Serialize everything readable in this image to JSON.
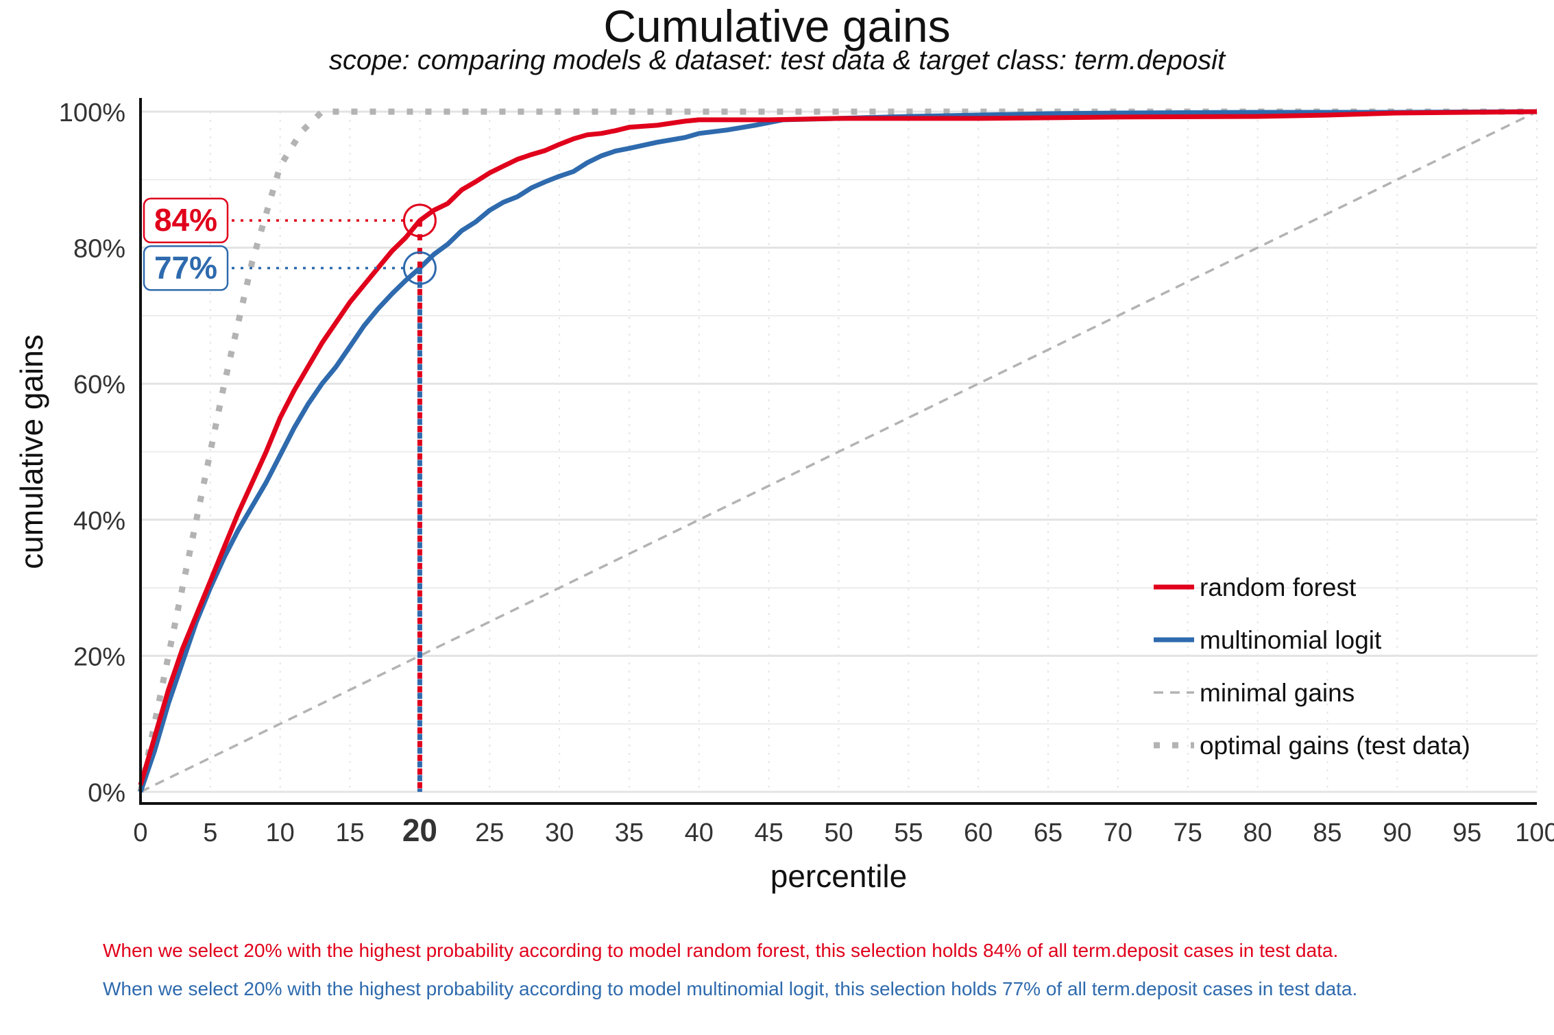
{
  "chart_data": {
    "type": "line",
    "title": "Cumulative gains",
    "subtitle": "scope: comparing models & dataset: test data & target class: term.deposit",
    "xlabel": "percentile",
    "ylabel": "cumulative gains",
    "xlim": [
      0,
      100
    ],
    "ylim": [
      0,
      1
    ],
    "x_ticks": [
      "0",
      "5",
      "10",
      "15",
      "20",
      "25",
      "30",
      "35",
      "40",
      "45",
      "50",
      "55",
      "60",
      "65",
      "70",
      "75",
      "80",
      "85",
      "90",
      "95",
      "100"
    ],
    "y_ticks": [
      "0%",
      "20%",
      "40%",
      "60%",
      "80%",
      "100%"
    ],
    "highlight_x": 20,
    "highlight_x_label": "20",
    "grid": true,
    "legend_position": "bottom-right",
    "colors": {
      "random_forest": "#e0001b",
      "multinomial_logit": "#2e6aad",
      "reference": "#b3b3b3",
      "axis": "#111111",
      "grid": "#e6e6e6"
    },
    "series": [
      {
        "name": "random forest",
        "color": "#e0001b",
        "x": [
          0,
          1,
          2,
          3,
          4,
          5,
          6,
          7,
          8,
          9,
          10,
          11,
          12,
          13,
          14,
          15,
          16,
          17,
          18,
          19,
          20,
          21,
          22,
          23,
          24,
          25,
          26,
          27,
          28,
          29,
          30,
          31,
          32,
          33,
          34,
          35,
          37,
          39,
          40,
          45,
          50,
          60,
          70,
          80,
          85,
          90,
          95,
          100
        ],
        "values": [
          0.01,
          0.08,
          0.15,
          0.21,
          0.26,
          0.31,
          0.36,
          0.41,
          0.455,
          0.5,
          0.55,
          0.59,
          0.625,
          0.66,
          0.69,
          0.72,
          0.745,
          0.77,
          0.795,
          0.815,
          0.84,
          0.855,
          0.865,
          0.885,
          0.897,
          0.91,
          0.92,
          0.93,
          0.937,
          0.943,
          0.952,
          0.96,
          0.966,
          0.968,
          0.972,
          0.977,
          0.98,
          0.986,
          0.988,
          0.988,
          0.99,
          0.99,
          0.992,
          0.993,
          0.995,
          0.998,
          0.999,
          1.0
        ]
      },
      {
        "name": "multinomial logit",
        "color": "#2e6aad",
        "x": [
          0,
          1,
          2,
          3,
          4,
          5,
          6,
          7,
          8,
          9,
          10,
          11,
          12,
          13,
          14,
          15,
          16,
          17,
          18,
          19,
          20,
          21,
          22,
          23,
          24,
          25,
          26,
          27,
          28,
          29,
          30,
          31,
          32,
          33,
          34,
          35,
          37,
          39,
          40,
          42,
          44,
          46,
          50,
          55,
          60,
          65,
          70,
          80,
          90,
          100
        ],
        "values": [
          0.0,
          0.06,
          0.13,
          0.19,
          0.25,
          0.3,
          0.345,
          0.385,
          0.42,
          0.455,
          0.495,
          0.535,
          0.57,
          0.6,
          0.625,
          0.655,
          0.685,
          0.71,
          0.732,
          0.752,
          0.77,
          0.79,
          0.805,
          0.825,
          0.838,
          0.855,
          0.867,
          0.875,
          0.888,
          0.897,
          0.905,
          0.912,
          0.925,
          0.935,
          0.942,
          0.946,
          0.955,
          0.962,
          0.968,
          0.973,
          0.98,
          0.988,
          0.99,
          0.993,
          0.995,
          0.997,
          0.998,
          0.999,
          0.999,
          1.0
        ]
      },
      {
        "name": "minimal gains",
        "color": "#b3b3b3",
        "x": [
          0,
          100
        ],
        "values": [
          0,
          1
        ]
      },
      {
        "name": "optimal gains (test data)",
        "color": "#b3b3b3",
        "x": [
          0,
          1,
          2,
          4,
          6,
          8,
          10,
          11.5,
          13,
          100
        ],
        "values": [
          0,
          0.1,
          0.2,
          0.4,
          0.6,
          0.78,
          0.92,
          0.97,
          1.0,
          1.0
        ]
      }
    ],
    "annotations": [
      {
        "series": "random forest",
        "x": 20,
        "value": 0.84,
        "label": "84%",
        "color": "#e0001b"
      },
      {
        "series": "multinomial logit",
        "x": 20,
        "value": 0.77,
        "label": "77%",
        "color": "#2e6aad"
      }
    ],
    "notes": {
      "rf": "When we select 20% with the highest probability according to model random forest, this selection holds 84% of all term.deposit cases in test data.",
      "ml": "When we select 20% with the highest probability according to model multinomial logit, this selection holds 77% of all term.deposit cases in test data."
    }
  }
}
